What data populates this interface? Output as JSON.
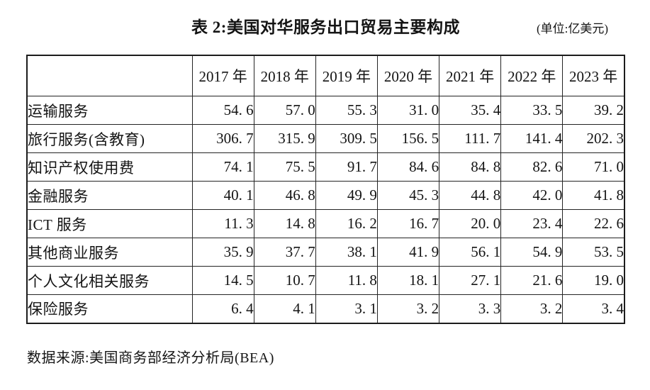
{
  "title": {
    "text": "表 2:美国对华服务出口贸易主要构成",
    "unit": "(单位:亿美元)"
  },
  "table": {
    "col_headers": [
      "2017 年",
      "2018 年",
      "2019 年",
      "2020 年",
      "2021 年",
      "2022 年",
      "2023 年"
    ],
    "rows": [
      {
        "label": "运输服务",
        "values": [
          "54. 6",
          "57. 0",
          "55. 3",
          "31. 0",
          "35. 4",
          "33. 5",
          "39. 2"
        ]
      },
      {
        "label": "旅行服务(含教育)",
        "values": [
          "306. 7",
          "315. 9",
          "309. 5",
          "156. 5",
          "111. 7",
          "141. 4",
          "202. 3"
        ]
      },
      {
        "label": "知识产权使用费",
        "values": [
          "74. 1",
          "75. 5",
          "91. 7",
          "84. 6",
          "84. 8",
          "82. 6",
          "71. 0"
        ]
      },
      {
        "label": "金融服务",
        "values": [
          "40. 1",
          "46. 8",
          "49. 9",
          "45. 3",
          "44. 8",
          "42. 0",
          "41. 8"
        ]
      },
      {
        "label": "ICT 服务",
        "values": [
          "11. 3",
          "14. 8",
          "16. 2",
          "16. 7",
          "20. 0",
          "23. 4",
          "22. 6"
        ]
      },
      {
        "label": "其他商业服务",
        "values": [
          "35. 9",
          "37. 7",
          "38. 1",
          "41. 9",
          "56. 1",
          "54. 9",
          "53. 5"
        ]
      },
      {
        "label": "个人文化相关服务",
        "values": [
          "14. 5",
          "10. 7",
          "11. 8",
          "18. 1",
          "27. 1",
          "21. 6",
          "19. 0"
        ]
      },
      {
        "label": "保险服务",
        "values": [
          "6. 4",
          "4. 1",
          "3. 1",
          "3. 2",
          "3. 3",
          "3. 2",
          "3. 4"
        ]
      }
    ]
  },
  "footer": {
    "source": "数据来源:美国商务部经济分析局(BEA)"
  },
  "chart_data": {
    "type": "table",
    "title": "表 2:美国对华服务出口贸易主要构成",
    "unit": "亿美元",
    "columns": [
      "2017",
      "2018",
      "2019",
      "2020",
      "2021",
      "2022",
      "2023"
    ],
    "rows": [
      {
        "category": "运输服务",
        "values": [
          54.6,
          57.0,
          55.3,
          31.0,
          35.4,
          33.5,
          39.2
        ]
      },
      {
        "category": "旅行服务(含教育)",
        "values": [
          306.7,
          315.9,
          309.5,
          156.5,
          111.7,
          141.4,
          202.3
        ]
      },
      {
        "category": "知识产权使用费",
        "values": [
          74.1,
          75.5,
          91.7,
          84.6,
          84.8,
          82.6,
          71.0
        ]
      },
      {
        "category": "金融服务",
        "values": [
          40.1,
          46.8,
          49.9,
          45.3,
          44.8,
          42.0,
          41.8
        ]
      },
      {
        "category": "ICT 服务",
        "values": [
          11.3,
          14.8,
          16.2,
          16.7,
          20.0,
          23.4,
          22.6
        ]
      },
      {
        "category": "其他商业服务",
        "values": [
          35.9,
          37.7,
          38.1,
          41.9,
          56.1,
          54.9,
          53.5
        ]
      },
      {
        "category": "个人文化相关服务",
        "values": [
          14.5,
          10.7,
          11.8,
          18.1,
          27.1,
          21.6,
          19.0
        ]
      },
      {
        "category": "保险服务",
        "values": [
          6.4,
          4.1,
          3.1,
          3.2,
          3.3,
          3.2,
          3.4
        ]
      }
    ],
    "source": "数据来源:美国商务部经济分析局(BEA)"
  }
}
